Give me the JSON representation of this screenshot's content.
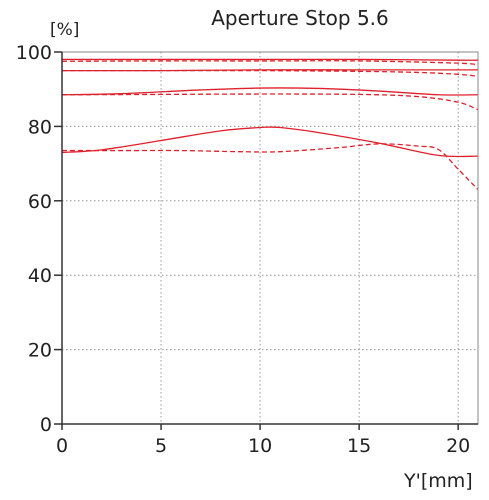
{
  "chart_data": {
    "type": "line",
    "title": "Aperture Stop 5.6",
    "ylabel": "[%]",
    "xlabel": "Y'[mm]",
    "xlim": [
      0,
      21
    ],
    "ylim": [
      0,
      100
    ],
    "xticks": [
      0,
      5,
      10,
      15,
      20
    ],
    "yticks": [
      0,
      20,
      40,
      60,
      80,
      100
    ],
    "grid": true,
    "line_color": "#e0202a",
    "series": [
      {
        "style": "solid",
        "x": [
          0,
          5,
          10,
          15,
          20,
          21
        ],
        "y": [
          98,
          98,
          98,
          98,
          97.8,
          97.8
        ]
      },
      {
        "style": "dashed",
        "x": [
          0,
          5,
          10,
          15,
          20,
          21
        ],
        "y": [
          97.5,
          97.6,
          97.6,
          97.6,
          97,
          96.5
        ]
      },
      {
        "style": "solid",
        "x": [
          0,
          5,
          10,
          15,
          20,
          21
        ],
        "y": [
          95,
          95,
          95.2,
          95.2,
          95.2,
          95.2
        ]
      },
      {
        "style": "dashed",
        "x": [
          0,
          5,
          10,
          15,
          18,
          20,
          21
        ],
        "y": [
          95,
          95,
          95,
          94.8,
          94.5,
          94,
          93.5
        ]
      },
      {
        "style": "solid",
        "x": [
          0,
          3,
          7,
          10,
          13,
          16,
          19,
          21
        ],
        "y": [
          88.5,
          88.8,
          89.8,
          90.3,
          90.2,
          89.5,
          88.5,
          88.5
        ]
      },
      {
        "style": "dashed",
        "x": [
          0,
          5,
          10,
          15,
          18,
          20,
          21
        ],
        "y": [
          88.5,
          88.6,
          88.7,
          88.6,
          88,
          86.5,
          84.5
        ]
      },
      {
        "style": "solid",
        "x": [
          0,
          2,
          5,
          8,
          10,
          11,
          13,
          16,
          19,
          21
        ],
        "y": [
          73,
          73.7,
          76.2,
          78.8,
          79.7,
          79.7,
          78.3,
          75.5,
          72.2,
          72
        ]
      },
      {
        "style": "dashed",
        "x": [
          0,
          3,
          6,
          9,
          11,
          14,
          16,
          18,
          19,
          20,
          21
        ],
        "y": [
          73.5,
          73.5,
          73.5,
          73.2,
          73.2,
          74.3,
          75.3,
          74.7,
          73.8,
          68.5,
          63
        ]
      }
    ]
  }
}
